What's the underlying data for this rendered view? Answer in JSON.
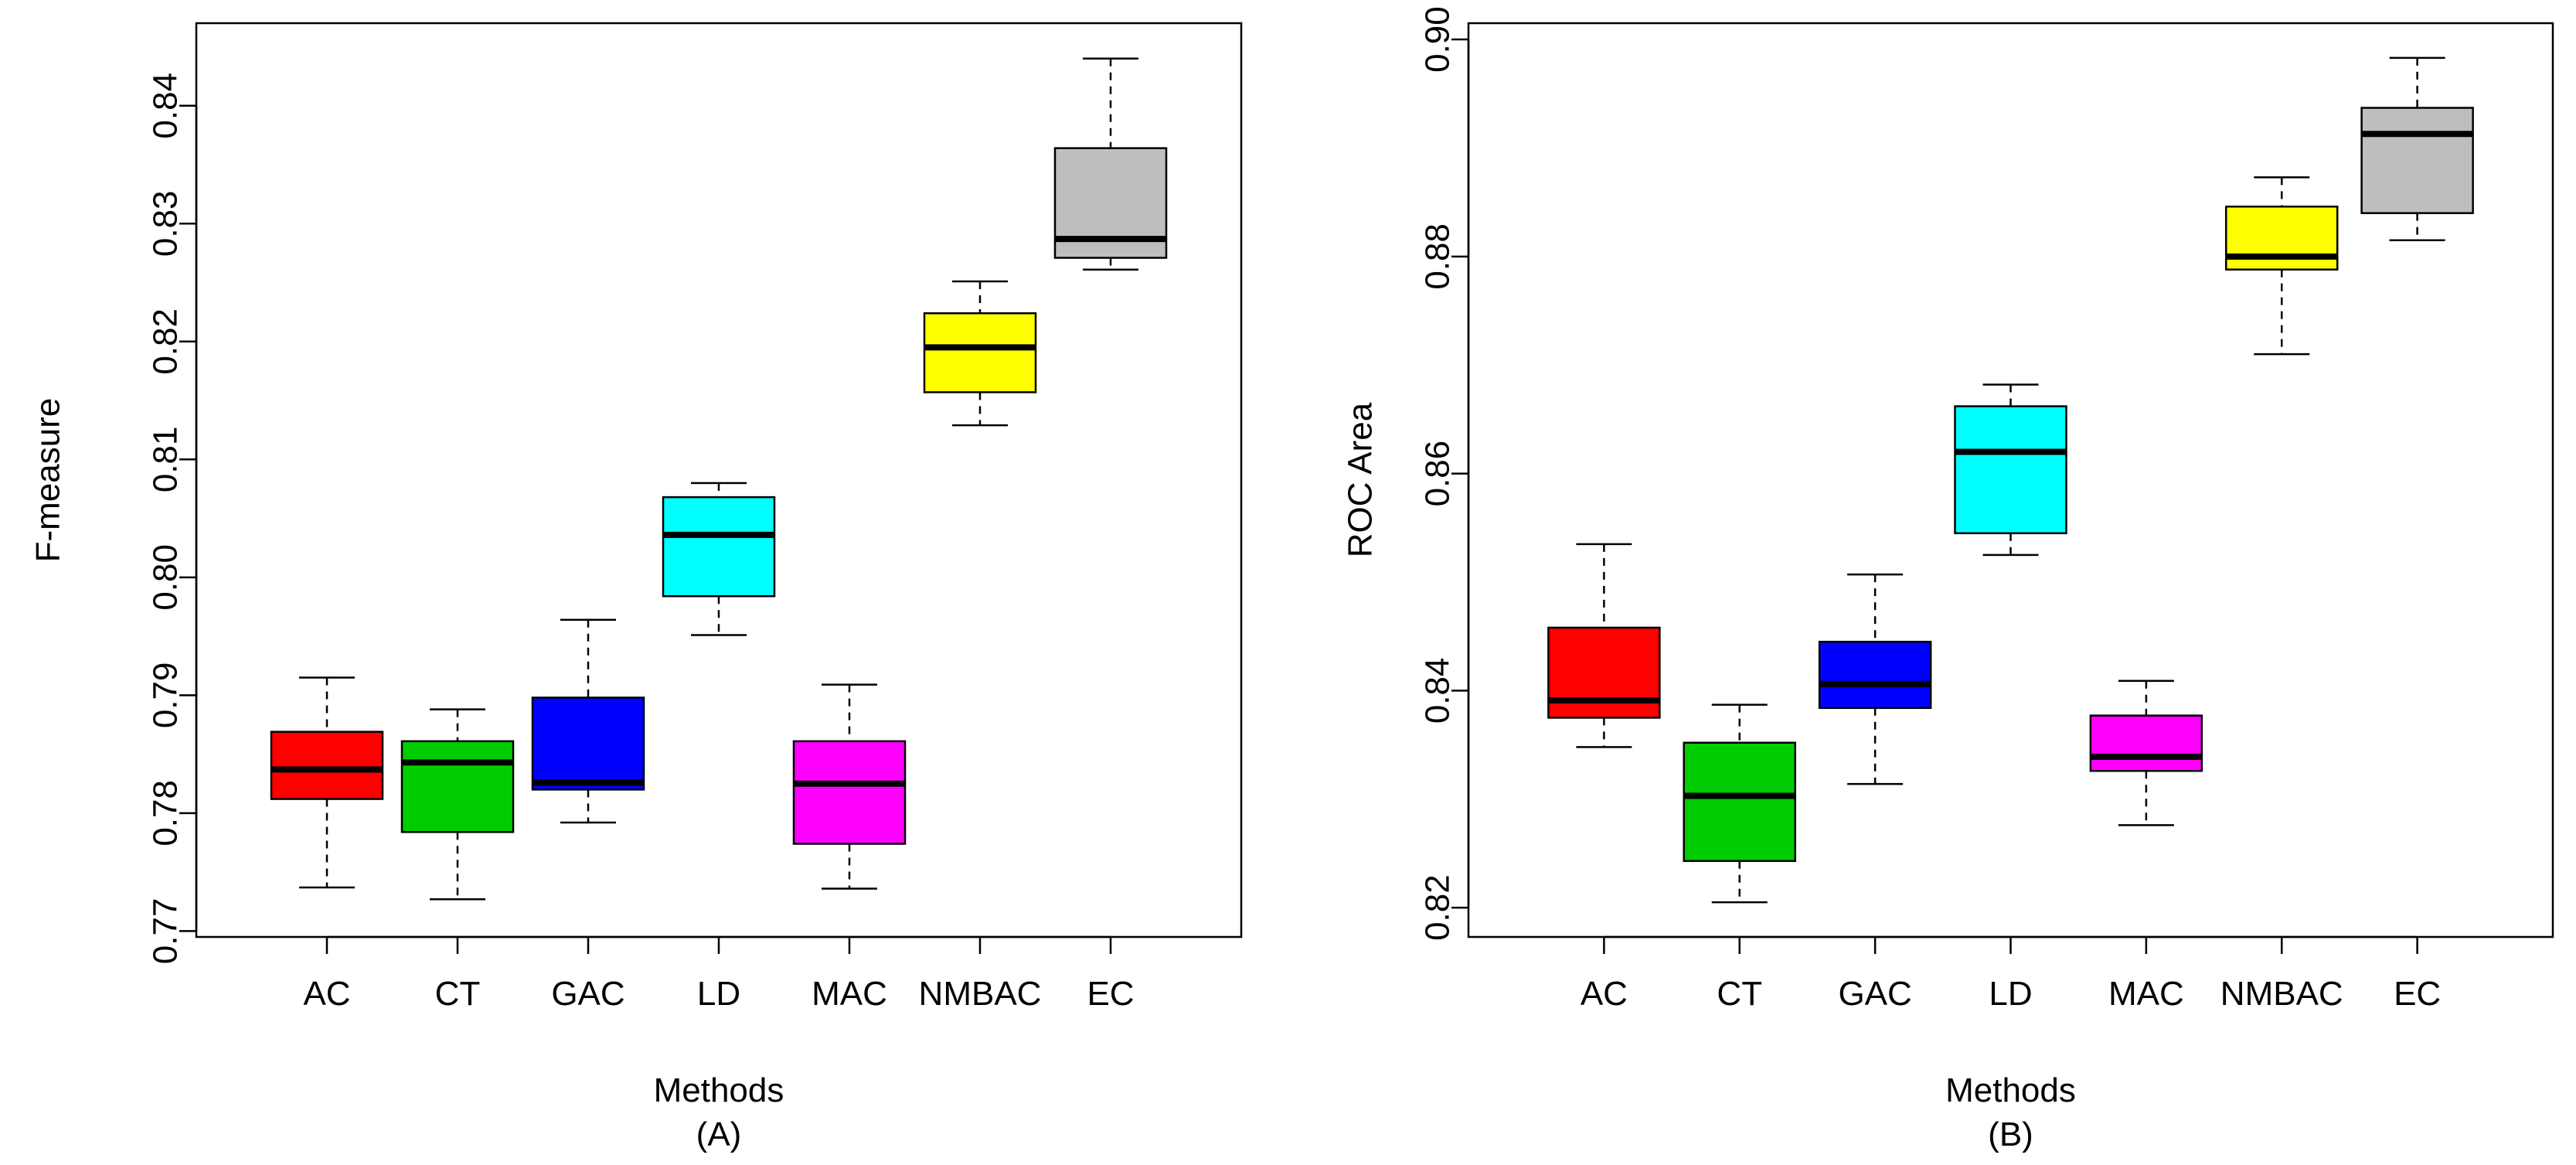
{
  "chart_data": [
    {
      "type": "boxplot",
      "panel_label": "(A)",
      "xlabel": "Methods",
      "ylabel": "F-measure",
      "ylim": [
        0.7695,
        0.847
      ],
      "yticks": [
        0.77,
        0.78,
        0.79,
        0.8,
        0.81,
        0.82,
        0.83,
        0.84
      ],
      "ytick_labels": [
        "0.77",
        "0.78",
        "0.79",
        "0.80",
        "0.81",
        "0.82",
        "0.83",
        "0.84"
      ],
      "grid": false,
      "legend": "none",
      "categories": [
        "AC",
        "CT",
        "GAC",
        "LD",
        "MAC",
        "NMBAC",
        "EC"
      ],
      "boxes": [
        {
          "min": 0.7737,
          "q1": 0.7812,
          "median": 0.7837,
          "q3": 0.7869,
          "max": 0.7915,
          "color": "#ff0000"
        },
        {
          "min": 0.7727,
          "q1": 0.7784,
          "median": 0.7843,
          "q3": 0.7861,
          "max": 0.7888,
          "color": "#00cd00"
        },
        {
          "min": 0.7792,
          "q1": 0.782,
          "median": 0.7826,
          "q3": 0.7898,
          "max": 0.7964,
          "color": "#0000ff"
        },
        {
          "min": 0.7951,
          "q1": 0.7984,
          "median": 0.8036,
          "q3": 0.8068,
          "max": 0.808,
          "color": "#00ffff"
        },
        {
          "min": 0.7736,
          "q1": 0.7774,
          "median": 0.7825,
          "q3": 0.7861,
          "max": 0.7909,
          "color": "#ff00ff"
        },
        {
          "min": 0.8129,
          "q1": 0.8157,
          "median": 0.8195,
          "q3": 0.8224,
          "max": 0.8251,
          "color": "#ffff00"
        },
        {
          "min": 0.8261,
          "q1": 0.8271,
          "median": 0.8287,
          "q3": 0.8364,
          "max": 0.844,
          "color": "#bebebe"
        }
      ]
    },
    {
      "type": "boxplot",
      "panel_label": "(B)",
      "xlabel": "Methods",
      "ylabel": "ROC Area",
      "ylim": [
        0.8173,
        0.9015
      ],
      "yticks": [
        0.82,
        0.84,
        0.86,
        0.88,
        0.9
      ],
      "ytick_labels": [
        "0.82",
        "0.84",
        "0.86",
        "0.88",
        "0.90"
      ],
      "grid": false,
      "legend": "none",
      "categories": [
        "AC",
        "CT",
        "GAC",
        "LD",
        "MAC",
        "NMBAC",
        "EC"
      ],
      "boxes": [
        {
          "min": 0.8348,
          "q1": 0.8375,
          "median": 0.8391,
          "q3": 0.8458,
          "max": 0.8535,
          "color": "#ff0000"
        },
        {
          "min": 0.8205,
          "q1": 0.8243,
          "median": 0.8303,
          "q3": 0.8352,
          "max": 0.8387,
          "color": "#00cd00"
        },
        {
          "min": 0.8314,
          "q1": 0.8384,
          "median": 0.8406,
          "q3": 0.8445,
          "max": 0.8507,
          "color": "#0000ff"
        },
        {
          "min": 0.8525,
          "q1": 0.8545,
          "median": 0.862,
          "q3": 0.8662,
          "max": 0.8682,
          "color": "#00ffff"
        },
        {
          "min": 0.8276,
          "q1": 0.8326,
          "median": 0.8339,
          "q3": 0.8377,
          "max": 0.8409,
          "color": "#ff00ff"
        },
        {
          "min": 0.871,
          "q1": 0.8788,
          "median": 0.88,
          "q3": 0.8846,
          "max": 0.8873,
          "color": "#ffff00"
        },
        {
          "min": 0.8815,
          "q1": 0.884,
          "median": 0.8913,
          "q3": 0.8937,
          "max": 0.8983,
          "color": "#bebebe"
        }
      ]
    }
  ]
}
